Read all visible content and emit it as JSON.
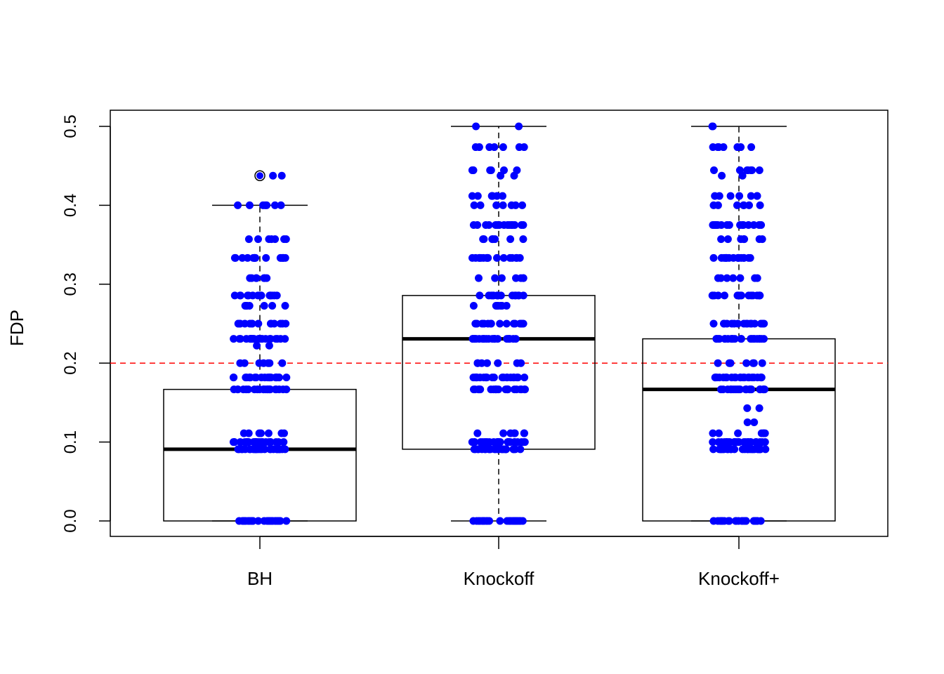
{
  "chart_data": {
    "type": "boxplot",
    "title": "",
    "xlabel": "",
    "ylabel": "FDP",
    "ylim": [
      0.0,
      0.5
    ],
    "yticks": [
      "0.0",
      "0.1",
      "0.2",
      "0.3",
      "0.4",
      "0.5"
    ],
    "reference_line": {
      "y": 0.2,
      "color": "#ff0000",
      "style": "dashed"
    },
    "point_color": "#0000ff",
    "groups": [
      {
        "name": "BH",
        "q1": 0.0,
        "median": 0.0909,
        "q3": 0.1667,
        "whisker_low": 0.0,
        "whisker_high": 0.4,
        "outliers": [
          0.4375
        ],
        "point_levels": [
          0.0,
          0.0909,
          0.1,
          0.1111,
          0.1667,
          0.1818,
          0.2,
          0.2222,
          0.2308,
          0.25,
          0.2727,
          0.2857,
          0.3077,
          0.3333,
          0.3571,
          0.4,
          0.4375
        ]
      },
      {
        "name": "Knockoff",
        "q1": 0.0909,
        "median": 0.2308,
        "q3": 0.2857,
        "whisker_low": 0.0,
        "whisker_high": 0.5,
        "outliers": [],
        "point_levels": [
          0.0,
          0.0909,
          0.1,
          0.1111,
          0.1667,
          0.1818,
          0.2,
          0.2308,
          0.25,
          0.2727,
          0.2857,
          0.3077,
          0.3333,
          0.3571,
          0.375,
          0.4,
          0.4118,
          0.4375,
          0.4444,
          0.4737,
          0.5
        ]
      },
      {
        "name": "Knockoff+",
        "q1": 0.0,
        "median": 0.1667,
        "q3": 0.2308,
        "whisker_low": 0.0,
        "whisker_high": 0.5,
        "outliers": [],
        "point_levels": [
          0.0,
          0.0909,
          0.1,
          0.1111,
          0.125,
          0.1429,
          0.1667,
          0.1818,
          0.2,
          0.2308,
          0.25,
          0.2857,
          0.3077,
          0.3333,
          0.3571,
          0.375,
          0.4,
          0.4118,
          0.4375,
          0.4444,
          0.4737,
          0.5
        ]
      }
    ]
  }
}
